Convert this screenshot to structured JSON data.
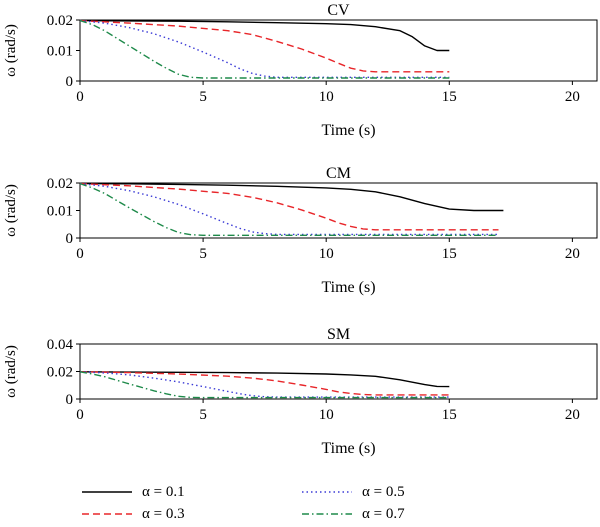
{
  "chart_data": [
    {
      "type": "line",
      "title": "CV",
      "xlabel": "Time (s)",
      "ylabel": "ω (rad/s)",
      "xlim": [
        0,
        21
      ],
      "ylim": [
        0,
        0.02
      ],
      "xticks": [
        "0",
        "5",
        "10",
        "15",
        "20"
      ],
      "yticks": [
        "0",
        "0.01",
        "0.02"
      ],
      "series": [
        {
          "name": "α = 0.1",
          "x": [
            0,
            2,
            4,
            6,
            8,
            10,
            11,
            12,
            13,
            13.5,
            14,
            14.5,
            15
          ],
          "y": [
            0.0198,
            0.0197,
            0.0196,
            0.0194,
            0.0191,
            0.0188,
            0.0185,
            0.0178,
            0.0165,
            0.0145,
            0.0115,
            0.01,
            0.01
          ]
        },
        {
          "name": "α = 0.3",
          "x": [
            0,
            2,
            4,
            6,
            7,
            8,
            9,
            10,
            10.5,
            11,
            11.5,
            12,
            13,
            15
          ],
          "y": [
            0.0198,
            0.019,
            0.018,
            0.0165,
            0.0152,
            0.013,
            0.0105,
            0.0075,
            0.0058,
            0.0042,
            0.0033,
            0.003,
            0.003,
            0.003
          ]
        },
        {
          "name": "α = 0.5",
          "x": [
            0,
            1,
            2,
            3,
            4,
            5,
            6,
            6.5,
            7,
            7.5,
            8,
            9,
            10,
            15
          ],
          "y": [
            0.0198,
            0.019,
            0.0175,
            0.0155,
            0.0128,
            0.0095,
            0.006,
            0.004,
            0.0025,
            0.0016,
            0.0012,
            0.0012,
            0.0012,
            0.0012
          ]
        },
        {
          "name": "α = 0.7",
          "x": [
            0,
            0.5,
            1,
            2,
            3,
            3.5,
            4,
            4.5,
            5,
            6,
            8,
            10,
            15
          ],
          "y": [
            0.0198,
            0.0185,
            0.0165,
            0.0115,
            0.0065,
            0.0042,
            0.0022,
            0.0012,
            0.001,
            0.001,
            0.001,
            0.001,
            0.001
          ]
        }
      ]
    },
    {
      "type": "line",
      "title": "CM",
      "xlabel": "Time (s)",
      "ylabel": "ω (rad/s)",
      "xlim": [
        0,
        21
      ],
      "ylim": [
        0,
        0.02
      ],
      "xticks": [
        "0",
        "5",
        "10",
        "15",
        "20"
      ],
      "yticks": [
        "0",
        "0.01",
        "0.02"
      ],
      "series": [
        {
          "name": "α = 0.1",
          "x": [
            0,
            2,
            4,
            6,
            8,
            10,
            11,
            12,
            13,
            14,
            15,
            16,
            17.2
          ],
          "y": [
            0.0198,
            0.0197,
            0.0195,
            0.0192,
            0.0188,
            0.0182,
            0.0177,
            0.0168,
            0.015,
            0.0125,
            0.0105,
            0.01,
            0.01
          ]
        },
        {
          "name": "α = 0.3",
          "x": [
            0,
            2,
            4,
            6,
            7,
            8,
            9,
            10,
            10.5,
            11,
            11.5,
            12,
            14,
            17
          ],
          "y": [
            0.0198,
            0.019,
            0.0178,
            0.0162,
            0.0148,
            0.0128,
            0.0102,
            0.0072,
            0.0055,
            0.0042,
            0.0033,
            0.003,
            0.003,
            0.003
          ]
        },
        {
          "name": "α = 0.5",
          "x": [
            0,
            1,
            2,
            3,
            4,
            5,
            6,
            6.5,
            7,
            7.5,
            8,
            10,
            14,
            17
          ],
          "y": [
            0.0198,
            0.0188,
            0.0172,
            0.015,
            0.0122,
            0.0088,
            0.0052,
            0.0035,
            0.0022,
            0.0016,
            0.0013,
            0.0013,
            0.0013,
            0.0013
          ]
        },
        {
          "name": "α = 0.7",
          "x": [
            0,
            0.5,
            1,
            2,
            3,
            3.5,
            4,
            4.5,
            5,
            6,
            10,
            14,
            17
          ],
          "y": [
            0.0198,
            0.0182,
            0.0162,
            0.011,
            0.006,
            0.0038,
            0.002,
            0.0012,
            0.001,
            0.001,
            0.001,
            0.001,
            0.001
          ]
        }
      ]
    },
    {
      "type": "line",
      "title": "SM",
      "xlabel": "Time (s)",
      "ylabel": "ω (rad/s)",
      "xlim": [
        0,
        21
      ],
      "ylim": [
        0,
        0.04
      ],
      "xticks": [
        "0",
        "5",
        "10",
        "15",
        "20"
      ],
      "yticks": [
        "0",
        "0.02",
        "0.04"
      ],
      "series": [
        {
          "name": "α = 0.1",
          "x": [
            0,
            2,
            4,
            6,
            8,
            10,
            11,
            12,
            13,
            14,
            14.5,
            15
          ],
          "y": [
            0.0198,
            0.0196,
            0.0194,
            0.0192,
            0.0188,
            0.0182,
            0.0175,
            0.0165,
            0.014,
            0.0105,
            0.0092,
            0.009
          ]
        },
        {
          "name": "α = 0.3",
          "x": [
            0,
            2,
            4,
            6,
            7,
            8,
            9,
            10,
            10.5,
            11,
            11.5,
            12,
            13,
            15
          ],
          "y": [
            0.0198,
            0.0192,
            0.0182,
            0.0166,
            0.0152,
            0.0132,
            0.0102,
            0.007,
            0.0052,
            0.004,
            0.0033,
            0.003,
            0.003,
            0.003
          ]
        },
        {
          "name": "α = 0.5",
          "x": [
            0,
            1,
            2,
            3,
            4,
            5,
            6,
            6.5,
            7,
            7.5,
            8,
            10,
            13,
            15
          ],
          "y": [
            0.0198,
            0.019,
            0.0175,
            0.0152,
            0.0124,
            0.009,
            0.0055,
            0.0038,
            0.0024,
            0.0017,
            0.0014,
            0.0014,
            0.0014,
            0.0014
          ]
        },
        {
          "name": "α = 0.7",
          "x": [
            0,
            0.5,
            1,
            2,
            3,
            3.5,
            4,
            4.5,
            5,
            6,
            10,
            15
          ],
          "y": [
            0.0198,
            0.0182,
            0.0162,
            0.011,
            0.006,
            0.0038,
            0.002,
            0.0012,
            0.001,
            0.001,
            0.001,
            0.001
          ]
        }
      ]
    }
  ],
  "legend": [
    {
      "label": "α = 0.1",
      "color": "#000000",
      "dash": "solid"
    },
    {
      "label": "α = 0.3",
      "color": "#e8262a",
      "dash": "dashed"
    },
    {
      "label": "α = 0.5",
      "color": "#3b3bd6",
      "dash": "dotted"
    },
    {
      "label": "α = 0.7",
      "color": "#1e8a4a",
      "dash": "dashdot"
    }
  ]
}
